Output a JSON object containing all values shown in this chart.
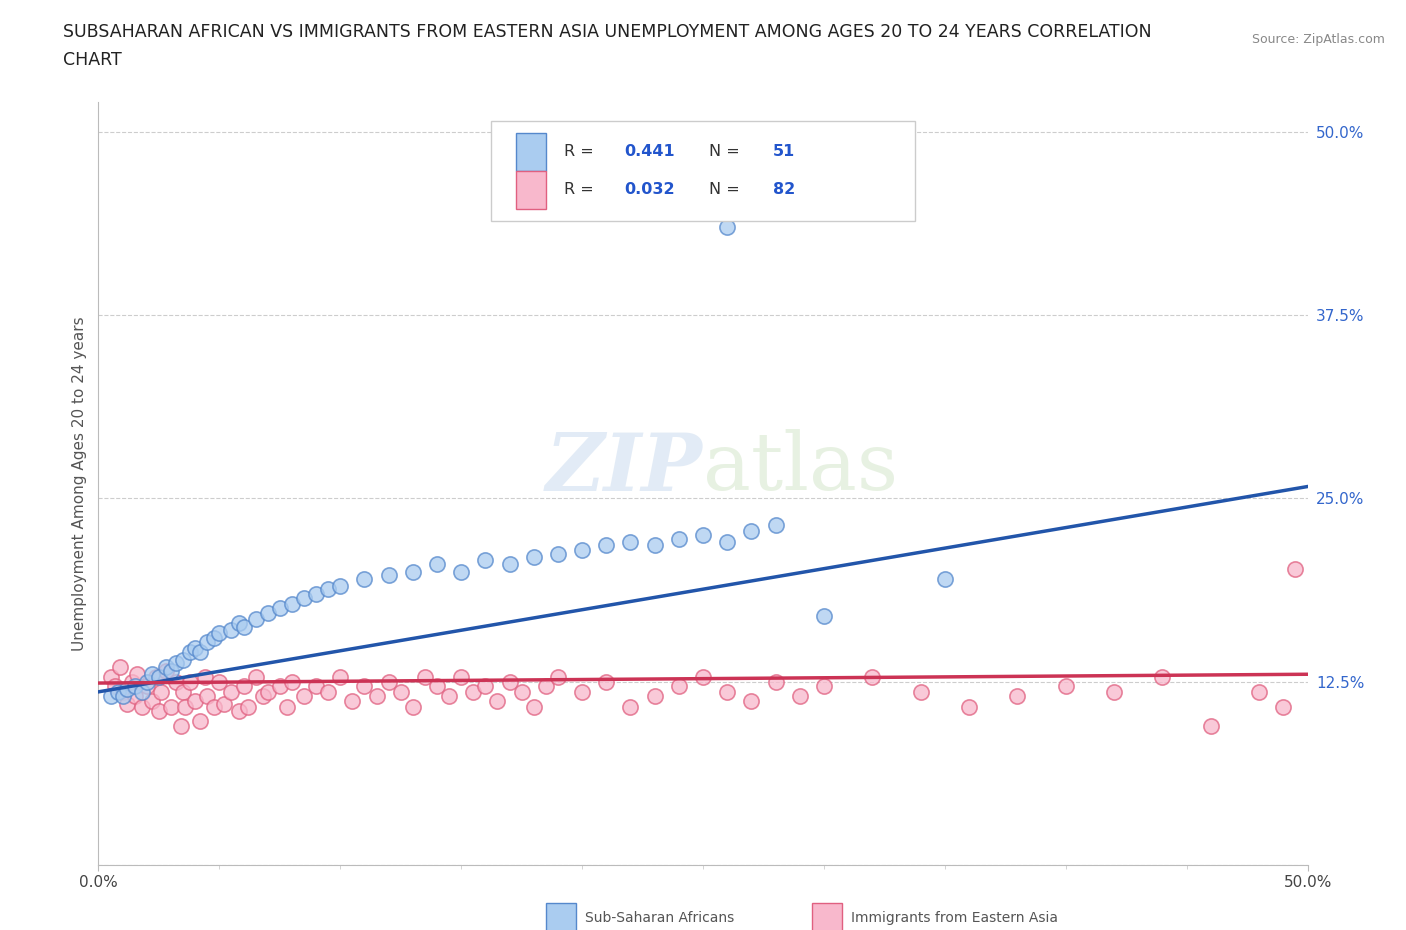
{
  "title_line1": "SUBSAHARAN AFRICAN VS IMMIGRANTS FROM EASTERN ASIA UNEMPLOYMENT AMONG AGES 20 TO 24 YEARS CORRELATION",
  "title_line2": "CHART",
  "source": "Source: ZipAtlas.com",
  "ylabel": "Unemployment Among Ages 20 to 24 years",
  "xlim": [
    0.0,
    0.5
  ],
  "ylim": [
    0.0,
    0.52
  ],
  "yticks": [
    0.0,
    0.125,
    0.25,
    0.375,
    0.5
  ],
  "ytick_labels": [
    "",
    "12.5%",
    "25.0%",
    "37.5%",
    "50.0%"
  ],
  "xticks": [
    0.0,
    0.5
  ],
  "xtick_labels": [
    "0.0%",
    "50.0%"
  ],
  "grid_color": "#c8c8c8",
  "background_color": "#ffffff",
  "watermark_text": "ZIPatlas",
  "series1": {
    "label": "Sub-Saharan Africans",
    "R": "0.441",
    "N": "51",
    "face_color": "#aaccf0",
    "edge_color": "#5588cc",
    "line_color": "#2255aa",
    "trendline": [
      [
        0.0,
        0.118
      ],
      [
        0.5,
        0.258
      ]
    ],
    "points": [
      [
        0.005,
        0.115
      ],
      [
        0.008,
        0.118
      ],
      [
        0.01,
        0.115
      ],
      [
        0.012,
        0.12
      ],
      [
        0.015,
        0.122
      ],
      [
        0.018,
        0.118
      ],
      [
        0.02,
        0.125
      ],
      [
        0.022,
        0.13
      ],
      [
        0.025,
        0.128
      ],
      [
        0.028,
        0.135
      ],
      [
        0.03,
        0.132
      ],
      [
        0.032,
        0.138
      ],
      [
        0.035,
        0.14
      ],
      [
        0.038,
        0.145
      ],
      [
        0.04,
        0.148
      ],
      [
        0.042,
        0.145
      ],
      [
        0.045,
        0.152
      ],
      [
        0.048,
        0.155
      ],
      [
        0.05,
        0.158
      ],
      [
        0.055,
        0.16
      ],
      [
        0.058,
        0.165
      ],
      [
        0.06,
        0.162
      ],
      [
        0.065,
        0.168
      ],
      [
        0.07,
        0.172
      ],
      [
        0.075,
        0.175
      ],
      [
        0.08,
        0.178
      ],
      [
        0.085,
        0.182
      ],
      [
        0.09,
        0.185
      ],
      [
        0.095,
        0.188
      ],
      [
        0.1,
        0.19
      ],
      [
        0.11,
        0.195
      ],
      [
        0.12,
        0.198
      ],
      [
        0.13,
        0.2
      ],
      [
        0.14,
        0.205
      ],
      [
        0.15,
        0.2
      ],
      [
        0.16,
        0.208
      ],
      [
        0.17,
        0.205
      ],
      [
        0.18,
        0.21
      ],
      [
        0.19,
        0.212
      ],
      [
        0.2,
        0.215
      ],
      [
        0.21,
        0.218
      ],
      [
        0.22,
        0.22
      ],
      [
        0.23,
        0.218
      ],
      [
        0.24,
        0.222
      ],
      [
        0.25,
        0.225
      ],
      [
        0.26,
        0.22
      ],
      [
        0.27,
        0.228
      ],
      [
        0.28,
        0.232
      ],
      [
        0.3,
        0.17
      ],
      [
        0.35,
        0.195
      ],
      [
        0.26,
        0.435
      ]
    ]
  },
  "series2": {
    "label": "Immigrants from Eastern Asia",
    "R": "0.032",
    "N": "82",
    "face_color": "#f8b8cc",
    "edge_color": "#e06080",
    "line_color": "#cc3355",
    "trendline": [
      [
        0.0,
        0.124
      ],
      [
        0.5,
        0.13
      ]
    ],
    "points": [
      [
        0.005,
        0.128
      ],
      [
        0.007,
        0.122
      ],
      [
        0.009,
        0.135
      ],
      [
        0.01,
        0.118
      ],
      [
        0.012,
        0.11
      ],
      [
        0.014,
        0.125
      ],
      [
        0.015,
        0.115
      ],
      [
        0.016,
        0.13
      ],
      [
        0.018,
        0.108
      ],
      [
        0.02,
        0.122
      ],
      [
        0.022,
        0.112
      ],
      [
        0.024,
        0.128
      ],
      [
        0.025,
        0.105
      ],
      [
        0.026,
        0.118
      ],
      [
        0.028,
        0.132
      ],
      [
        0.03,
        0.108
      ],
      [
        0.032,
        0.125
      ],
      [
        0.034,
        0.095
      ],
      [
        0.035,
        0.118
      ],
      [
        0.036,
        0.108
      ],
      [
        0.038,
        0.125
      ],
      [
        0.04,
        0.112
      ],
      [
        0.042,
        0.098
      ],
      [
        0.044,
        0.128
      ],
      [
        0.045,
        0.115
      ],
      [
        0.048,
        0.108
      ],
      [
        0.05,
        0.125
      ],
      [
        0.052,
        0.11
      ],
      [
        0.055,
        0.118
      ],
      [
        0.058,
        0.105
      ],
      [
        0.06,
        0.122
      ],
      [
        0.062,
        0.108
      ],
      [
        0.065,
        0.128
      ],
      [
        0.068,
        0.115
      ],
      [
        0.07,
        0.118
      ],
      [
        0.075,
        0.122
      ],
      [
        0.078,
        0.108
      ],
      [
        0.08,
        0.125
      ],
      [
        0.085,
        0.115
      ],
      [
        0.09,
        0.122
      ],
      [
        0.095,
        0.118
      ],
      [
        0.1,
        0.128
      ],
      [
        0.105,
        0.112
      ],
      [
        0.11,
        0.122
      ],
      [
        0.115,
        0.115
      ],
      [
        0.12,
        0.125
      ],
      [
        0.125,
        0.118
      ],
      [
        0.13,
        0.108
      ],
      [
        0.135,
        0.128
      ],
      [
        0.14,
        0.122
      ],
      [
        0.145,
        0.115
      ],
      [
        0.15,
        0.128
      ],
      [
        0.155,
        0.118
      ],
      [
        0.16,
        0.122
      ],
      [
        0.165,
        0.112
      ],
      [
        0.17,
        0.125
      ],
      [
        0.175,
        0.118
      ],
      [
        0.18,
        0.108
      ],
      [
        0.185,
        0.122
      ],
      [
        0.19,
        0.128
      ],
      [
        0.2,
        0.118
      ],
      [
        0.21,
        0.125
      ],
      [
        0.22,
        0.108
      ],
      [
        0.23,
        0.115
      ],
      [
        0.24,
        0.122
      ],
      [
        0.25,
        0.128
      ],
      [
        0.26,
        0.118
      ],
      [
        0.27,
        0.112
      ],
      [
        0.28,
        0.125
      ],
      [
        0.29,
        0.115
      ],
      [
        0.3,
        0.122
      ],
      [
        0.32,
        0.128
      ],
      [
        0.34,
        0.118
      ],
      [
        0.36,
        0.108
      ],
      [
        0.38,
        0.115
      ],
      [
        0.4,
        0.122
      ],
      [
        0.42,
        0.118
      ],
      [
        0.44,
        0.128
      ],
      [
        0.46,
        0.095
      ],
      [
        0.48,
        0.118
      ],
      [
        0.49,
        0.108
      ],
      [
        0.495,
        0.202
      ]
    ]
  }
}
